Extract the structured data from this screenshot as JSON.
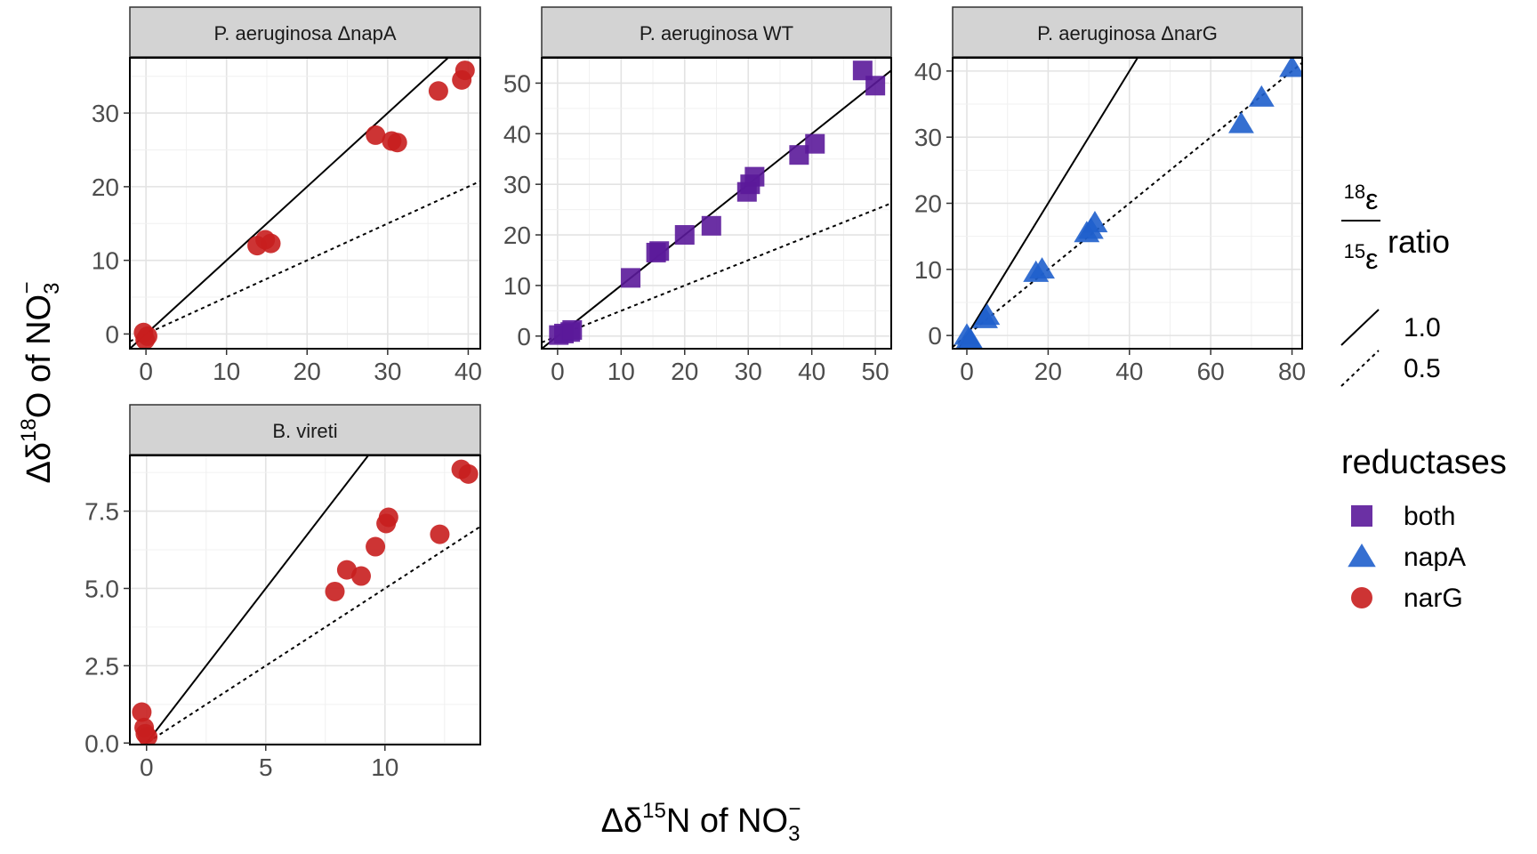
{
  "chart_data": {
    "type": "scatter",
    "xlabel": {
      "prefix": "Δδ",
      "sup": "15",
      "mid": "N of NO",
      "sub": "3",
      "sup2": "−"
    },
    "ylabel": {
      "prefix": "Δδ",
      "sup": "18",
      "mid": "O of NO",
      "sub": "3",
      "sup2": "−"
    },
    "reference_lines": [
      {
        "slope": 1.0,
        "label": "1.0",
        "style": "solid"
      },
      {
        "slope": 0.5,
        "label": "0.5",
        "style": "dotted"
      }
    ],
    "legend_ratio": {
      "num_sup": "18",
      "num": "ε",
      "den_sup": "15",
      "den": "ε",
      "word": "ratio"
    },
    "legend_reductases": {
      "title": "reductases",
      "items": [
        {
          "label": "both",
          "shape": "square",
          "color": "#5b1a9a"
        },
        {
          "label": "napA",
          "shape": "triangle",
          "color": "#1f5fcc"
        },
        {
          "label": "narG",
          "shape": "circle",
          "color": "#c81e1e"
        }
      ]
    },
    "panels": [
      {
        "title": "P. aeruginosa ΔnapA",
        "reductase": "narG",
        "xlim": [
          -2,
          41.5
        ],
        "ylim": [
          -2,
          37.5
        ],
        "xticks": [
          0,
          10,
          20,
          30,
          40
        ],
        "yticks": [
          0,
          10,
          20,
          30
        ],
        "points": [
          [
            -0.3,
            0.2
          ],
          [
            0.2,
            -0.3
          ],
          [
            -0.1,
            -0.8
          ],
          [
            13.8,
            12.0
          ],
          [
            14.8,
            12.8
          ],
          [
            15.5,
            12.3
          ],
          [
            28.5,
            27.0
          ],
          [
            30.5,
            26.2
          ],
          [
            31.2,
            26.0
          ],
          [
            36.3,
            33.0
          ],
          [
            39.2,
            34.5
          ],
          [
            39.6,
            35.8
          ]
        ]
      },
      {
        "title": "P. aeruginosa WT",
        "reductase": "both",
        "xlim": [
          -2.5,
          52.5
        ],
        "ylim": [
          -2.5,
          55
        ],
        "xticks": [
          0,
          10,
          20,
          30,
          40,
          50
        ],
        "yticks": [
          0,
          10,
          20,
          30,
          40,
          50
        ],
        "points": [
          [
            0.2,
            0.2
          ],
          [
            1.0,
            0.5
          ],
          [
            2.0,
            0.8
          ],
          [
            2.3,
            1.2
          ],
          [
            11.5,
            11.5
          ],
          [
            15.5,
            16.5
          ],
          [
            16.0,
            16.8
          ],
          [
            20.0,
            20.0
          ],
          [
            24.2,
            21.8
          ],
          [
            29.8,
            28.5
          ],
          [
            30.3,
            30.0
          ],
          [
            31.0,
            31.5
          ],
          [
            38.0,
            35.8
          ],
          [
            40.5,
            38.0
          ],
          [
            48.0,
            52.5
          ],
          [
            50.0,
            49.5
          ]
        ]
      },
      {
        "title": "P. aeruginosa ΔnarG",
        "reductase": "napA",
        "xlim": [
          -3.5,
          82.5
        ],
        "ylim": [
          -2,
          42
        ],
        "xticks": [
          0,
          20,
          40,
          60,
          80
        ],
        "yticks": [
          0,
          10,
          20,
          30,
          40
        ],
        "points": [
          [
            0.0,
            0.0
          ],
          [
            0.5,
            -0.5
          ],
          [
            1.0,
            -0.8
          ],
          [
            4.5,
            2.5
          ],
          [
            5.0,
            3.0
          ],
          [
            17.0,
            9.5
          ],
          [
            18.5,
            10.0
          ],
          [
            29.5,
            15.5
          ],
          [
            30.5,
            16.0
          ],
          [
            31.5,
            17.0
          ],
          [
            67.5,
            32.0
          ],
          [
            72.5,
            36.0
          ],
          [
            80.0,
            40.5
          ]
        ]
      },
      {
        "title": "B. vireti",
        "reductase": "narG",
        "xlim": [
          -0.7,
          14.0
        ],
        "ylim": [
          -0.05,
          9.3
        ],
        "xticks": [
          0,
          5,
          10
        ],
        "yticks": [
          0.0,
          2.5,
          5.0,
          7.5
        ],
        "points": [
          [
            -0.2,
            1.0
          ],
          [
            -0.1,
            0.5
          ],
          [
            -0.05,
            0.3
          ],
          [
            0.05,
            0.2
          ],
          [
            7.9,
            4.9
          ],
          [
            8.4,
            5.6
          ],
          [
            9.0,
            5.4
          ],
          [
            9.6,
            6.35
          ],
          [
            10.05,
            7.1
          ],
          [
            10.15,
            7.3
          ],
          [
            12.3,
            6.75
          ],
          [
            13.2,
            8.85
          ],
          [
            13.5,
            8.7
          ]
        ]
      }
    ]
  }
}
